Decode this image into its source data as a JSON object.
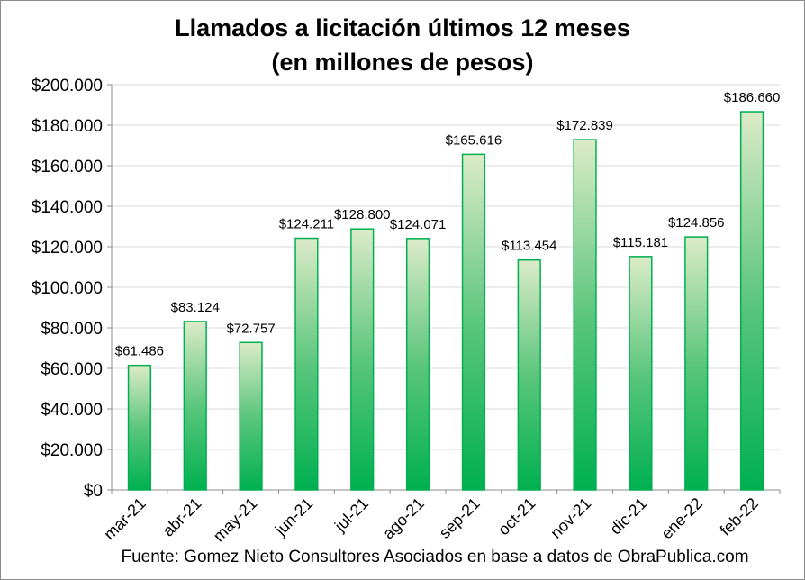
{
  "chart_data": {
    "type": "bar",
    "title": "Llamados a licitación últimos 12 meses",
    "subtitle": "(en millones de pesos)",
    "categories": [
      "mar-21",
      "abr-21",
      "may-21",
      "jun-21",
      "jul-21",
      "ago-21",
      "sep-21",
      "oct-21",
      "nov-21",
      "dic-21",
      "ene-22",
      "feb-22"
    ],
    "values": [
      61486,
      83124,
      72757,
      124211,
      128800,
      124071,
      165616,
      113454,
      172839,
      115181,
      124856,
      186660
    ],
    "data_labels": [
      "$61.486",
      "$83.124",
      "$72.757",
      "$124.211",
      "$128.800",
      "$124.071",
      "$165.616",
      "$113.454",
      "$172.839",
      "$115.181",
      "$124.856",
      "$186.660"
    ],
    "yticks": [
      "$0",
      "$20.000",
      "$40.000",
      "$60.000",
      "$80.000",
      "$100.000",
      "$120.000",
      "$140.000",
      "$160.000",
      "$180.000",
      "$200.000"
    ],
    "ylim": [
      0,
      200000
    ],
    "xlabel": "",
    "ylabel": "",
    "grid": true,
    "bar_color_top": "#dcebc8",
    "bar_color_bottom": "#00b050",
    "bar_border": "#00b050",
    "source": "Fuente: Gomez Nieto Consultores Asociados en base a datos de ObraPublica.com"
  }
}
